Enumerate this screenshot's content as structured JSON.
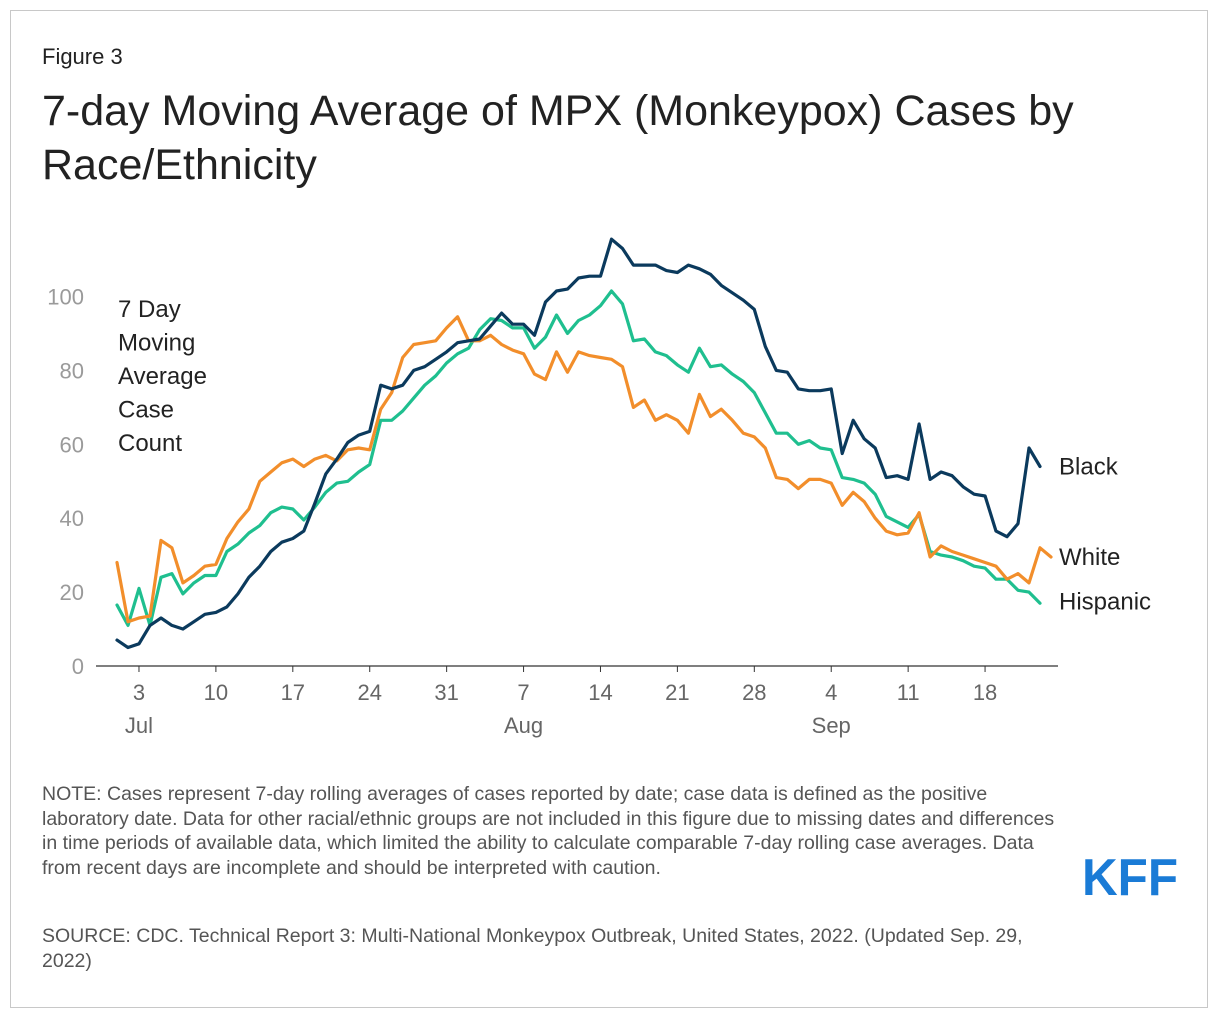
{
  "figure_label": "Figure 3",
  "title": "7-day Moving Average of MPX (Monkeypox) Cases by Race/Ethnicity",
  "note": "NOTE: Cases represent 7-day rolling averages of cases reported by date; case data is defined as the positive laboratory date. Data for other racial/ethnic groups are not included in this figure due to missing dates and differences in time periods of available data, which limited the ability to calculate comparable 7-day rolling case averages. Data from recent days are incomplete and should be interpreted with caution.",
  "source": "SOURCE: CDC. Technical Report 3: Multi-National Monkeypox Outbreak, United States, 2022. (Updated Sep. 29, 2022)",
  "logo_text": "KFF",
  "chart_data": {
    "type": "line",
    "ylabel_lines": [
      "7 Day",
      "Moving",
      "Average",
      "Case",
      "Count"
    ],
    "ylim": [
      0,
      115
    ],
    "yticks": [
      0,
      20,
      40,
      60,
      80,
      100
    ],
    "x_start_day": 1,
    "x_end_day": 83,
    "xticks": [
      {
        "day": 3,
        "label": "3"
      },
      {
        "day": 10,
        "label": "10"
      },
      {
        "day": 17,
        "label": "17"
      },
      {
        "day": 24,
        "label": "24"
      },
      {
        "day": 31,
        "label": "31"
      },
      {
        "day": 38,
        "label": "7"
      },
      {
        "day": 45,
        "label": "14"
      },
      {
        "day": 52,
        "label": "21"
      },
      {
        "day": 59,
        "label": "28"
      },
      {
        "day": 66,
        "label": "4"
      },
      {
        "day": 73,
        "label": "11"
      },
      {
        "day": 80,
        "label": "18"
      }
    ],
    "months": [
      {
        "day": 3,
        "label": "Jul"
      },
      {
        "day": 38,
        "label": "Aug"
      },
      {
        "day": 66,
        "label": "Sep"
      }
    ],
    "series": [
      {
        "name": "Black",
        "color": "#0b3a5d",
        "values": [
          7,
          5,
          6,
          11,
          13,
          11,
          10,
          12,
          14,
          14.5,
          16,
          19.5,
          24,
          27,
          31,
          33.5,
          34.5,
          36.5,
          44,
          52,
          56,
          60.5,
          62.5,
          63.5,
          76,
          75,
          76,
          80,
          81,
          83,
          85,
          87.5,
          88,
          88.5,
          92,
          95.5,
          92.5,
          92.5,
          89.5,
          98.5,
          101.5,
          102,
          105,
          105.5,
          105.5,
          115.5,
          113,
          108.5,
          108.5,
          108.5,
          107,
          106.5,
          108.5,
          107.5,
          106,
          103,
          101,
          99,
          96.5,
          86.5,
          80,
          79.5,
          75,
          74.5,
          74.5,
          75,
          57.5,
          66.5,
          61.5,
          59,
          51,
          51.5,
          50.5,
          65.5,
          50.5,
          52.5,
          51.5,
          48.5,
          46.5,
          46,
          36.5,
          35,
          38.5,
          59,
          54
        ]
      },
      {
        "name": "White",
        "color": "#f28e2b",
        "values": [
          28,
          12,
          13,
          13.5,
          34,
          32,
          22.5,
          24.5,
          27,
          27.5,
          34.5,
          39,
          42.5,
          50,
          52.5,
          55,
          56,
          54,
          56,
          57,
          55.5,
          58.5,
          59,
          58.5,
          69.5,
          74,
          83.5,
          87,
          87.5,
          88,
          91.5,
          94.5,
          88,
          88,
          89.5,
          87,
          85.5,
          84.5,
          79,
          77.5,
          85,
          79.5,
          85,
          84,
          83.5,
          83,
          81,
          70,
          72,
          66.5,
          68,
          66.5,
          63,
          73.5,
          67.5,
          69.5,
          66.5,
          63,
          62,
          59,
          51,
          50.5,
          48,
          50.5,
          50.5,
          49.5,
          43.5,
          47,
          44.5,
          40,
          36.5,
          35.5,
          36,
          41.5,
          29.5,
          32.5,
          31,
          30,
          29,
          28,
          27,
          23.5,
          25,
          22.5,
          32,
          29.5
        ]
      },
      {
        "name": "Hispanic",
        "color": "#1fbf8f",
        "values": [
          16.5,
          11,
          21,
          11,
          24,
          25,
          19.5,
          22.5,
          24.5,
          24.5,
          31,
          33,
          36,
          38,
          41.5,
          43,
          42.5,
          39.5,
          43,
          47,
          49.5,
          50,
          52.5,
          54.5,
          66.5,
          66.5,
          69,
          72.5,
          76,
          78.5,
          82,
          84.5,
          86,
          91,
          94,
          93.5,
          91.5,
          91.5,
          86,
          89,
          95,
          90,
          93.5,
          95,
          97.5,
          101.5,
          98,
          88,
          88.5,
          85,
          84,
          81.5,
          79.5,
          86,
          81,
          81.5,
          79,
          77,
          74,
          68.5,
          63,
          63,
          60,
          61,
          59,
          58.5,
          51,
          50.5,
          49.5,
          46.5,
          40.5,
          39,
          37.5,
          41,
          31,
          30,
          29.5,
          28.5,
          27,
          26.5,
          23.5,
          23.5,
          20.5,
          20,
          17
        ]
      }
    ],
    "end_labels": [
      {
        "name": "Black",
        "text": "Black",
        "value": 54
      },
      {
        "name": "White",
        "text": "White",
        "value": 29.5
      },
      {
        "name": "Hispanic",
        "text": "Hispanic",
        "value": 17.5
      }
    ]
  }
}
